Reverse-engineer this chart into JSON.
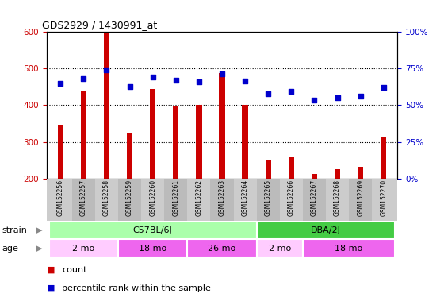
{
  "title": "GDS2929 / 1430991_at",
  "samples": [
    "GSM152256",
    "GSM152257",
    "GSM152258",
    "GSM152259",
    "GSM152260",
    "GSM152261",
    "GSM152262",
    "GSM152263",
    "GSM152264",
    "GSM152265",
    "GSM152266",
    "GSM152267",
    "GSM152268",
    "GSM152269",
    "GSM152270"
  ],
  "counts": [
    347,
    440,
    600,
    325,
    445,
    397,
    400,
    487,
    402,
    250,
    257,
    212,
    225,
    232,
    311
  ],
  "percentile_values": [
    460,
    472,
    497,
    452,
    476,
    468,
    465,
    486,
    466,
    432,
    437,
    415,
    420,
    425,
    448
  ],
  "ylim_left": [
    200,
    600
  ],
  "ylim_right": [
    0,
    100
  ],
  "y_ticks_left": [
    200,
    300,
    400,
    500,
    600
  ],
  "y_ticks_right": [
    0,
    25,
    50,
    75,
    100
  ],
  "bar_color": "#cc0000",
  "scatter_color": "#0000cc",
  "bar_bottom": 200,
  "bar_width": 0.25,
  "strain_groups": [
    {
      "label": "C57BL/6J",
      "start": 0,
      "end": 8,
      "color": "#aaffaa"
    },
    {
      "label": "DBA/2J",
      "start": 9,
      "end": 14,
      "color": "#44cc44"
    }
  ],
  "age_groups": [
    {
      "label": "2 mo",
      "start": 0,
      "end": 2,
      "color": "#ffccff"
    },
    {
      "label": "18 mo",
      "start": 3,
      "end": 5,
      "color": "#ee66ee"
    },
    {
      "label": "26 mo",
      "start": 6,
      "end": 8,
      "color": "#ee66ee"
    },
    {
      "label": "2 mo",
      "start": 9,
      "end": 10,
      "color": "#ffccff"
    },
    {
      "label": "18 mo",
      "start": 11,
      "end": 14,
      "color": "#ee66ee"
    }
  ],
  "tick_bg_colors": [
    "#cccccc",
    "#bbbbbb"
  ],
  "grid_dotted_at": [
    300,
    400,
    500
  ],
  "right_axis_ticks_map": {
    "200": "0",
    "300": "25",
    "400": "50",
    "500": "75",
    "600": "100"
  }
}
